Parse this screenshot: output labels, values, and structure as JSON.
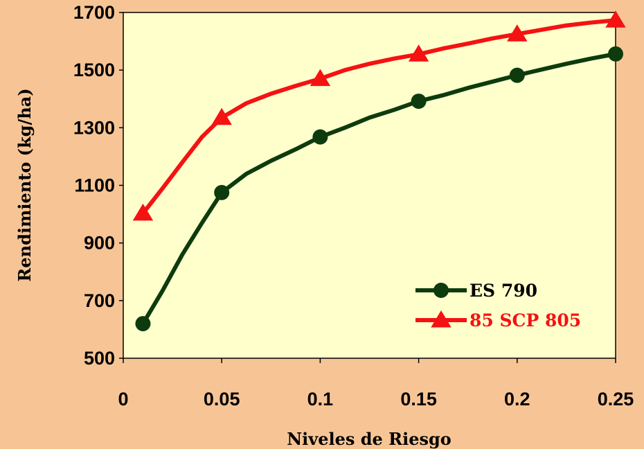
{
  "chart_data": {
    "type": "line",
    "title": "",
    "xlabel": "Niveles de Riesgo",
    "ylabel": "Rendimiento (kg/ha)",
    "xlim": [
      0,
      0.25
    ],
    "ylim": [
      500,
      1700
    ],
    "x_ticks": [
      "0",
      "0.05",
      "0.1",
      "0.15",
      "0.2",
      "0.25"
    ],
    "y_ticks": [
      "500",
      "700",
      "900",
      "1100",
      "1300",
      "1500",
      "1700"
    ],
    "grid": false,
    "legend_position": "bottom-right",
    "series": [
      {
        "name": "ES 790",
        "color": "#0D3B0D",
        "marker": "circle",
        "marker_x": [
          0.01,
          0.05,
          0.1,
          0.15,
          0.2,
          0.25
        ],
        "marker_y": [
          620,
          1075,
          1268,
          1392,
          1482,
          1556
        ],
        "x": [
          0.01,
          0.02,
          0.03,
          0.04,
          0.05,
          0.0625,
          0.075,
          0.0875,
          0.1,
          0.1125,
          0.125,
          0.1375,
          0.15,
          0.1625,
          0.175,
          0.1875,
          0.2,
          0.2125,
          0.225,
          0.2375,
          0.25
        ],
        "y": [
          620,
          735,
          860,
          970,
          1075,
          1140,
          1185,
          1225,
          1268,
          1300,
          1335,
          1362,
          1392,
          1413,
          1438,
          1460,
          1482,
          1502,
          1522,
          1540,
          1556
        ]
      },
      {
        "name": "85 SCP 805",
        "color": "#F41212",
        "marker": "triangle",
        "marker_x": [
          0.01,
          0.05,
          0.1,
          0.15,
          0.2,
          0.25
        ],
        "marker_y": [
          1003,
          1335,
          1470,
          1555,
          1625,
          1673
        ],
        "x": [
          0.01,
          0.02,
          0.03,
          0.04,
          0.05,
          0.0625,
          0.075,
          0.0875,
          0.1,
          0.1125,
          0.125,
          0.1375,
          0.15,
          0.1625,
          0.175,
          0.1875,
          0.2,
          0.2125,
          0.225,
          0.2375,
          0.25
        ],
        "y": [
          1003,
          1090,
          1180,
          1268,
          1335,
          1385,
          1418,
          1445,
          1470,
          1500,
          1522,
          1540,
          1555,
          1575,
          1592,
          1610,
          1625,
          1640,
          1655,
          1665,
          1673
        ]
      }
    ]
  }
}
